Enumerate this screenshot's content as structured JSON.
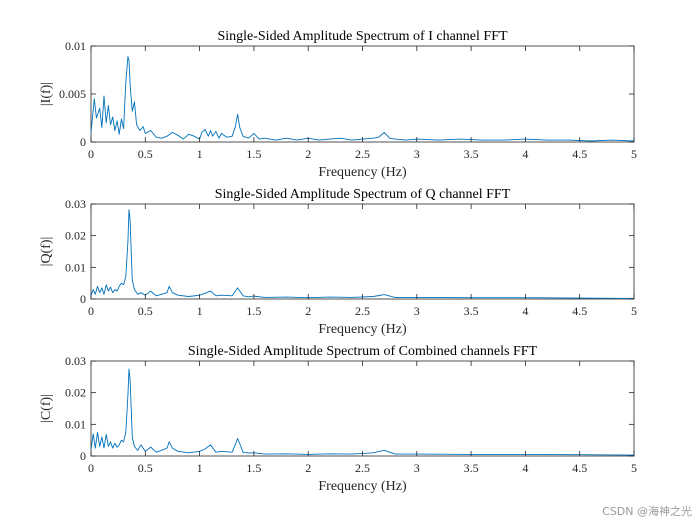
{
  "chart_data": [
    {
      "type": "line",
      "title": "Single-Sided Amplitude Spectrum of I channel FFT",
      "xlabel": "Frequency (Hz)",
      "ylabel": "|I(f)|",
      "xlim": [
        0,
        5
      ],
      "ylim": [
        0,
        0.01
      ],
      "x_ticks": [
        "0",
        "0.5",
        "1",
        "1.5",
        "2",
        "2.5",
        "3",
        "3.5",
        "4",
        "4.5",
        "5"
      ],
      "y_ticks": [
        "0",
        "0.005",
        "0.01"
      ],
      "y_tick_values": [
        0,
        0.005,
        0.01
      ],
      "series": [
        {
          "name": "I",
          "x": [
            0,
            0.03,
            0.05,
            0.08,
            0.1,
            0.12,
            0.14,
            0.16,
            0.18,
            0.2,
            0.22,
            0.24,
            0.26,
            0.28,
            0.3,
            0.32,
            0.34,
            0.35,
            0.36,
            0.38,
            0.4,
            0.42,
            0.45,
            0.48,
            0.5,
            0.55,
            0.6,
            0.65,
            0.7,
            0.75,
            0.8,
            0.85,
            0.9,
            0.95,
            1.0,
            1.02,
            1.05,
            1.08,
            1.1,
            1.12,
            1.15,
            1.18,
            1.2,
            1.25,
            1.3,
            1.33,
            1.35,
            1.37,
            1.4,
            1.45,
            1.5,
            1.55,
            1.6,
            1.7,
            1.8,
            1.9,
            2.0,
            2.1,
            2.2,
            2.3,
            2.4,
            2.5,
            2.6,
            2.65,
            2.7,
            2.75,
            2.8,
            2.9,
            3.0,
            3.2,
            3.4,
            3.6,
            3.8,
            4.0,
            4.2,
            4.4,
            4.6,
            4.8,
            5.0
          ],
          "y": [
            0.001,
            0.0045,
            0.0025,
            0.0035,
            0.0015,
            0.0048,
            0.002,
            0.0038,
            0.0018,
            0.0026,
            0.0012,
            0.0022,
            0.0008,
            0.0024,
            0.0014,
            0.0062,
            0.0089,
            0.0085,
            0.006,
            0.0032,
            0.0042,
            0.0018,
            0.0012,
            0.0016,
            0.0009,
            0.0012,
            0.0005,
            0.0004,
            0.0006,
            0.001,
            0.0007,
            0.0003,
            0.0008,
            0.0006,
            0.0003,
            0.001,
            0.0013,
            0.0006,
            0.0012,
            0.0006,
            0.0011,
            0.0004,
            0.0009,
            0.0005,
            0.0006,
            0.0016,
            0.0029,
            0.0015,
            0.0006,
            0.0004,
            0.0009,
            0.0003,
            0.0004,
            0.0002,
            0.0004,
            0.0002,
            0.0004,
            0.0002,
            0.0003,
            0.0004,
            0.0002,
            0.0003,
            0.0004,
            0.0005,
            0.001,
            0.0004,
            0.0003,
            0.0002,
            0.0003,
            0.0002,
            0.0003,
            0.0002,
            0.0002,
            0.0003,
            0.0002,
            0.0002,
            0.0001,
            0.0002,
            0.0001
          ]
        }
      ]
    },
    {
      "type": "line",
      "title": "Single-Sided Amplitude Spectrum of Q channel FFT",
      "xlabel": "Frequency (Hz)",
      "ylabel": "|Q(f)|",
      "xlim": [
        0,
        5
      ],
      "ylim": [
        0,
        0.03
      ],
      "x_ticks": [
        "0",
        "0.5",
        "1",
        "1.5",
        "2",
        "2.5",
        "3",
        "3.5",
        "4",
        "4.5",
        "5"
      ],
      "y_ticks": [
        "0",
        "0.01",
        "0.02",
        "0.03"
      ],
      "y_tick_values": [
        0,
        0.01,
        0.02,
        0.03
      ],
      "series": [
        {
          "name": "Q",
          "x": [
            0,
            0.02,
            0.04,
            0.06,
            0.08,
            0.1,
            0.12,
            0.14,
            0.16,
            0.18,
            0.2,
            0.22,
            0.24,
            0.26,
            0.28,
            0.3,
            0.32,
            0.34,
            0.35,
            0.36,
            0.37,
            0.38,
            0.4,
            0.43,
            0.46,
            0.5,
            0.55,
            0.6,
            0.65,
            0.7,
            0.72,
            0.75,
            0.8,
            0.9,
            1.0,
            1.05,
            1.1,
            1.15,
            1.2,
            1.3,
            1.35,
            1.38,
            1.4,
            1.45,
            1.5,
            1.6,
            1.8,
            2.0,
            2.2,
            2.4,
            2.6,
            2.7,
            2.8,
            3.0,
            3.5,
            4.0,
            4.5,
            5.0
          ],
          "y": [
            0.001,
            0.003,
            0.0015,
            0.004,
            0.002,
            0.0035,
            0.0015,
            0.0045,
            0.0025,
            0.0038,
            0.002,
            0.003,
            0.0025,
            0.004,
            0.005,
            0.0045,
            0.007,
            0.018,
            0.0282,
            0.025,
            0.015,
            0.006,
            0.003,
            0.0015,
            0.002,
            0.0012,
            0.0025,
            0.001,
            0.0015,
            0.002,
            0.004,
            0.002,
            0.0012,
            0.0008,
            0.0012,
            0.0018,
            0.0025,
            0.001,
            0.0012,
            0.001,
            0.0035,
            0.002,
            0.001,
            0.0007,
            0.0009,
            0.0005,
            0.0006,
            0.0004,
            0.0006,
            0.0005,
            0.0008,
            0.0014,
            0.0005,
            0.0005,
            0.0004,
            0.0004,
            0.0003,
            0.0002
          ]
        }
      ]
    },
    {
      "type": "line",
      "title": "Single-Sided Amplitude Spectrum of Combined channels FFT",
      "xlabel": "Frequency (Hz)",
      "ylabel": "|C(f)|",
      "xlim": [
        0,
        5
      ],
      "ylim": [
        0,
        0.03
      ],
      "x_ticks": [
        "0",
        "0.5",
        "1",
        "1.5",
        "2",
        "2.5",
        "3",
        "3.5",
        "4",
        "4.5",
        "5"
      ],
      "y_ticks": [
        "0",
        "0.01",
        "0.02",
        "0.03"
      ],
      "y_tick_values": [
        0,
        0.01,
        0.02,
        0.03
      ],
      "series": [
        {
          "name": "Combined",
          "x": [
            0,
            0.02,
            0.04,
            0.06,
            0.08,
            0.1,
            0.12,
            0.14,
            0.16,
            0.18,
            0.2,
            0.22,
            0.24,
            0.26,
            0.28,
            0.3,
            0.32,
            0.34,
            0.35,
            0.36,
            0.37,
            0.38,
            0.4,
            0.43,
            0.46,
            0.5,
            0.55,
            0.6,
            0.65,
            0.7,
            0.72,
            0.75,
            0.8,
            0.9,
            1.0,
            1.05,
            1.1,
            1.15,
            1.2,
            1.3,
            1.35,
            1.38,
            1.4,
            1.45,
            1.5,
            1.6,
            1.8,
            2.0,
            2.2,
            2.4,
            2.6,
            2.7,
            2.8,
            3.0,
            3.5,
            4.0,
            4.5,
            5.0
          ],
          "y": [
            0.002,
            0.007,
            0.0025,
            0.0075,
            0.003,
            0.006,
            0.0025,
            0.0068,
            0.003,
            0.0045,
            0.0025,
            0.004,
            0.0028,
            0.0035,
            0.005,
            0.0045,
            0.0075,
            0.019,
            0.0275,
            0.024,
            0.015,
            0.006,
            0.003,
            0.0018,
            0.0035,
            0.0015,
            0.0028,
            0.0012,
            0.0018,
            0.0025,
            0.0045,
            0.0025,
            0.0015,
            0.001,
            0.0015,
            0.0022,
            0.0035,
            0.0012,
            0.0015,
            0.0012,
            0.0055,
            0.003,
            0.0012,
            0.0009,
            0.001,
            0.0006,
            0.0007,
            0.0005,
            0.0007,
            0.0006,
            0.001,
            0.0018,
            0.0006,
            0.0006,
            0.0005,
            0.0005,
            0.0004,
            0.0003
          ]
        }
      ]
    }
  ],
  "colors": {
    "series": "#0072BD",
    "axis": "#262626"
  },
  "watermark": "CSDN @海神之光"
}
